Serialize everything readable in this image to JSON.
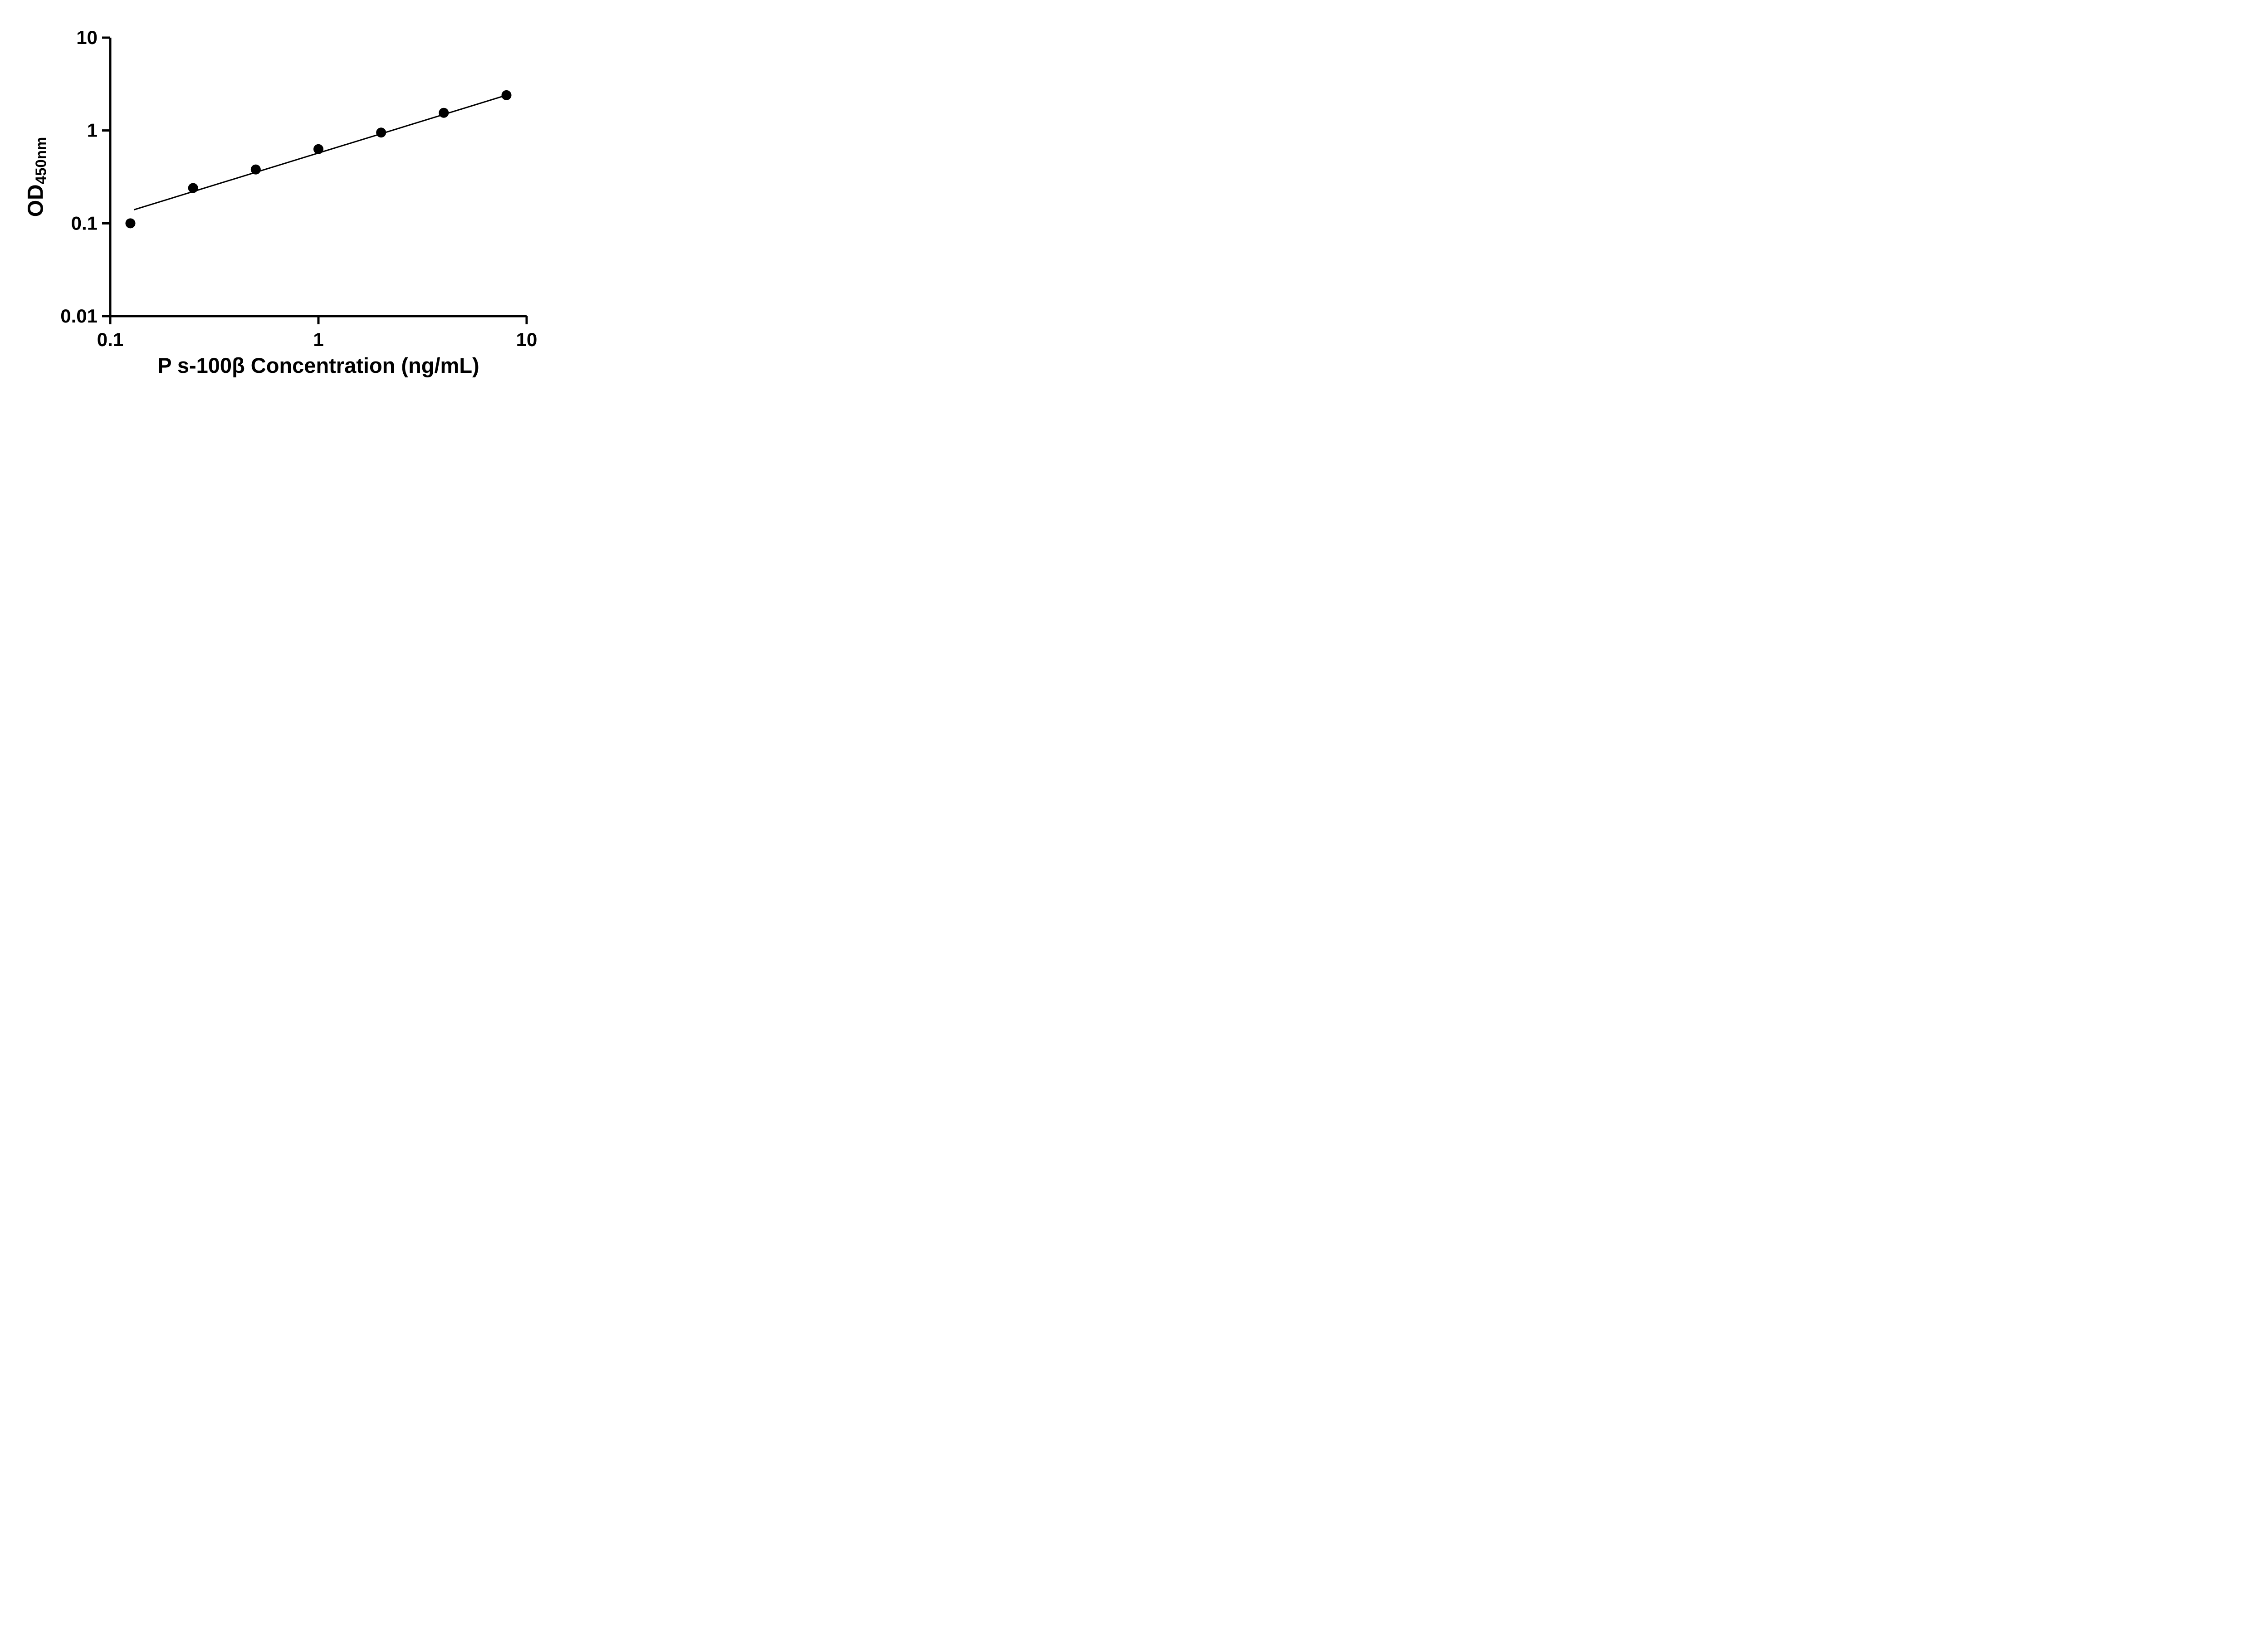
{
  "chart_data": {
    "type": "scatter",
    "title": "",
    "xlabel": "P s-100β Concentration (ng/mL)",
    "ylabel_main": "OD",
    "ylabel_sub": "450nm",
    "x_scale": "log",
    "y_scale": "log",
    "xlim": [
      0.1,
      10
    ],
    "ylim": [
      0.01,
      10
    ],
    "grid": false,
    "legend": "none",
    "x_ticks": [
      {
        "value": 0.1,
        "label": "0.1"
      },
      {
        "value": 1,
        "label": "1"
      },
      {
        "value": 10,
        "label": "10"
      }
    ],
    "y_ticks": [
      {
        "value": 0.01,
        "label": "0.01"
      },
      {
        "value": 0.1,
        "label": "0.1"
      },
      {
        "value": 1,
        "label": "1"
      },
      {
        "value": 10,
        "label": "10"
      }
    ],
    "series": [
      {
        "name": "standard-curve-points",
        "kind": "scatter",
        "x": [
          0.125,
          0.25,
          0.5,
          1,
          2,
          4,
          8
        ],
        "y": [
          0.1,
          0.24,
          0.38,
          0.63,
          0.95,
          1.55,
          2.4
        ]
      },
      {
        "name": "fit-line",
        "kind": "line",
        "x": [
          0.13,
          8
        ],
        "y": [
          0.14,
          2.4
        ]
      }
    ],
    "marker_color": "#000000",
    "line_color": "#000000",
    "axis_color": "#000000",
    "background": "#ffffff"
  }
}
